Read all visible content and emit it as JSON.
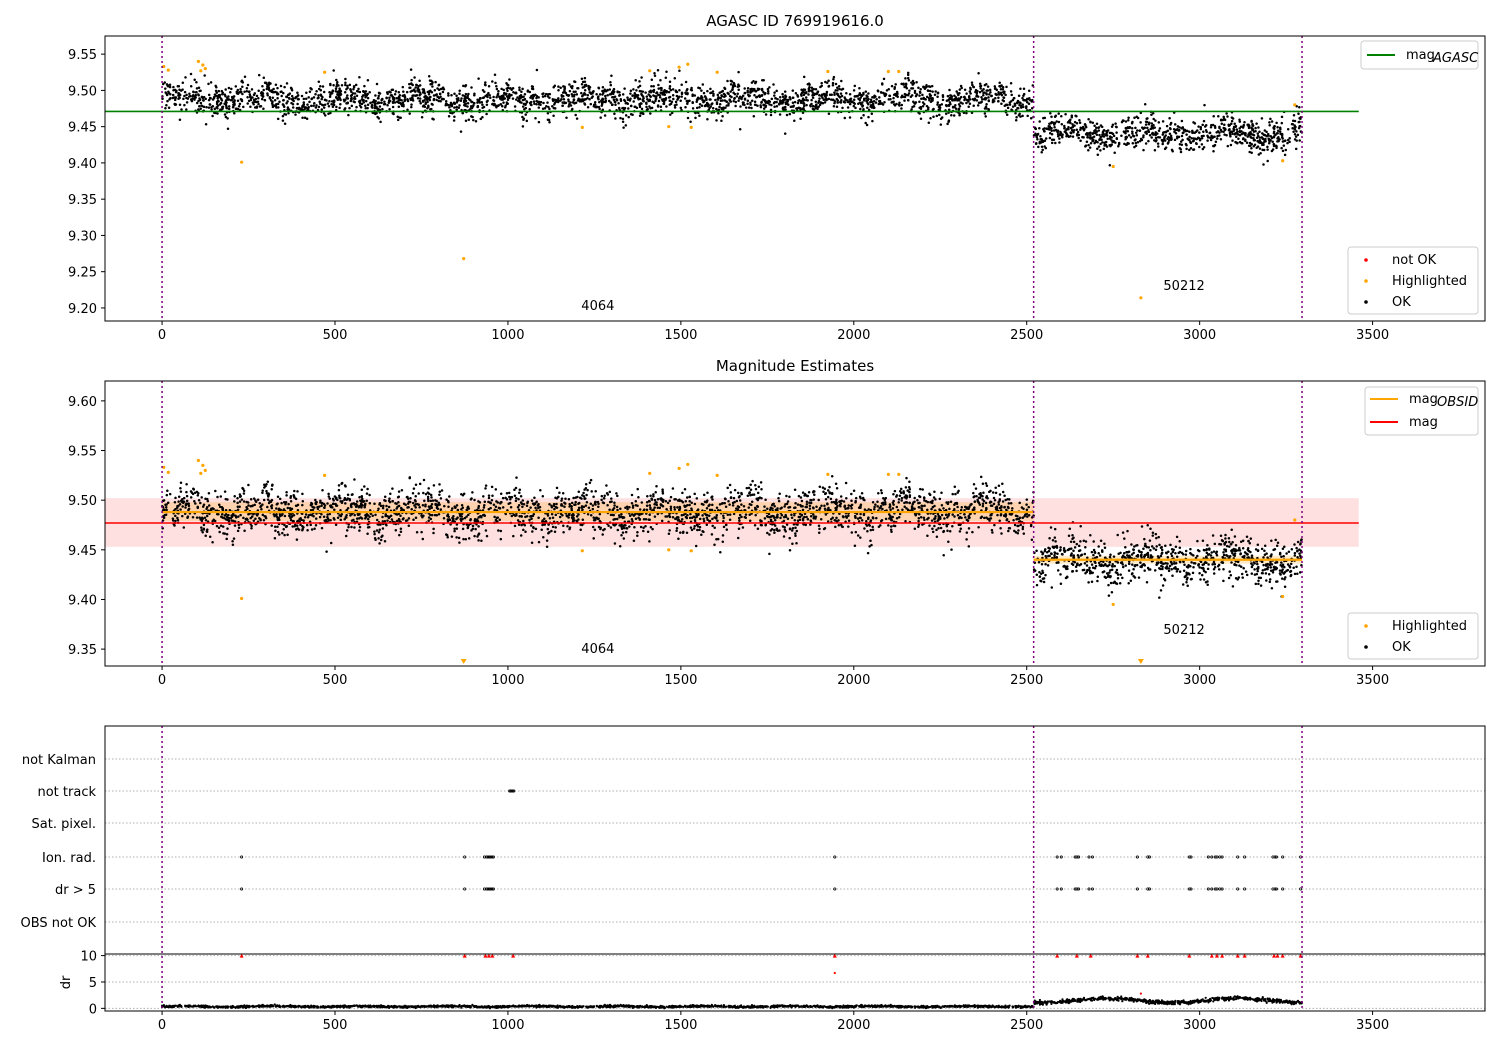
{
  "chart_data": [
    {
      "type": "scatter",
      "title": "AGASC ID 769919616.0",
      "xlim": [
        -165,
        3825
      ],
      "ylim": [
        9.182,
        9.575
      ],
      "x_ticks": [
        0,
        500,
        1000,
        1500,
        2000,
        2500,
        3000,
        3500
      ],
      "y_ticks": [
        9.2,
        9.25,
        9.3,
        9.35,
        9.4,
        9.45,
        9.5,
        9.55
      ],
      "legend_position": "top-right and bottom-right",
      "legend_top": [
        {
          "label": "mag",
          "sub": "AGASC",
          "color": "#008000"
        }
      ],
      "legend_bottom": [
        {
          "label": "not OK",
          "color": "#ff0000"
        },
        {
          "label": "Highlighted",
          "color": "#ffa500"
        },
        {
          "label": "OK",
          "color": "#000000"
        }
      ],
      "mag_agasc": {
        "value": 9.471,
        "x_range": [
          -165,
          3460
        ]
      },
      "vlines": [
        0,
        2520,
        3296
      ],
      "annotations": [
        {
          "text": "4064",
          "x": 1260,
          "y": 9.197
        },
        {
          "text": "50212",
          "x": 2955,
          "y": 9.225
        }
      ],
      "segments": [
        {
          "x_start": 0,
          "x_end": 2520,
          "mean": 9.488,
          "spread": 0.011
        },
        {
          "x_start": 2520,
          "x_end": 3296,
          "mean": 9.44,
          "spread": 0.011
        }
      ],
      "highlighted_points": [
        {
          "x": 5,
          "y": 9.533
        },
        {
          "x": 18,
          "y": 9.528
        },
        {
          "x": 105,
          "y": 9.54
        },
        {
          "x": 112,
          "y": 9.527
        },
        {
          "x": 118,
          "y": 9.535
        },
        {
          "x": 125,
          "y": 9.53
        },
        {
          "x": 230,
          "y": 9.401
        },
        {
          "x": 470,
          "y": 9.525
        },
        {
          "x": 872,
          "y": 9.268
        },
        {
          "x": 1215,
          "y": 9.449
        },
        {
          "x": 1410,
          "y": 9.527
        },
        {
          "x": 1465,
          "y": 9.45
        },
        {
          "x": 1495,
          "y": 9.532
        },
        {
          "x": 1520,
          "y": 9.536
        },
        {
          "x": 1530,
          "y": 9.449
        },
        {
          "x": 1605,
          "y": 9.525
        },
        {
          "x": 1925,
          "y": 9.526
        },
        {
          "x": 2100,
          "y": 9.526
        },
        {
          "x": 2130,
          "y": 9.526
        },
        {
          "x": 2750,
          "y": 9.395
        },
        {
          "x": 2830,
          "y": 9.214
        },
        {
          "x": 3240,
          "y": 9.403
        },
        {
          "x": 3275,
          "y": 9.48
        }
      ],
      "not_ok_points": []
    },
    {
      "type": "scatter",
      "title": "Magnitude Estimates",
      "xlim": [
        -165,
        3825
      ],
      "ylim": [
        9.333,
        9.62
      ],
      "x_ticks": [
        0,
        500,
        1000,
        1500,
        2000,
        2500,
        3000,
        3500
      ],
      "y_ticks": [
        9.35,
        9.4,
        9.45,
        9.5,
        9.55,
        9.6
      ],
      "legend_position": "top-right and bottom-right",
      "legend_top": [
        {
          "label": "mag",
          "sub": "OBSID",
          "color": "#ffa500"
        },
        {
          "label": "mag",
          "sub": "",
          "color": "#ff0000"
        }
      ],
      "legend_bottom": [
        {
          "label": "Highlighted",
          "color": "#ffa500"
        },
        {
          "label": "OK",
          "color": "#000000"
        }
      ],
      "mag_line": {
        "value": 9.477,
        "x_range": [
          -165,
          3460
        ],
        "band": [
          9.453,
          9.502
        ]
      },
      "mag_obsid": [
        {
          "x_start": 0,
          "x_end": 2520,
          "value": 9.488,
          "band": [
            9.479,
            9.498
          ]
        },
        {
          "x_start": 2520,
          "x_end": 3296,
          "value": 9.44,
          "band": [
            9.436,
            9.444
          ]
        }
      ],
      "vlines": [
        0,
        2520,
        3296
      ],
      "annotations": [
        {
          "text": "4064",
          "x": 1260,
          "y": 9.346
        },
        {
          "text": "50212",
          "x": 2955,
          "y": 9.365
        }
      ],
      "segments": [
        {
          "x_start": 0,
          "x_end": 2520,
          "mean": 9.488,
          "spread": 0.011
        },
        {
          "x_start": 2520,
          "x_end": 3296,
          "mean": 9.44,
          "spread": 0.011
        }
      ],
      "highlighted_points": [
        {
          "x": 5,
          "y": 9.533
        },
        {
          "x": 18,
          "y": 9.528
        },
        {
          "x": 105,
          "y": 9.54
        },
        {
          "x": 112,
          "y": 9.527
        },
        {
          "x": 118,
          "y": 9.535
        },
        {
          "x": 125,
          "y": 9.53
        },
        {
          "x": 230,
          "y": 9.401
        },
        {
          "x": 470,
          "y": 9.525
        },
        {
          "x": 1215,
          "y": 9.449
        },
        {
          "x": 1410,
          "y": 9.527
        },
        {
          "x": 1465,
          "y": 9.45
        },
        {
          "x": 1495,
          "y": 9.532
        },
        {
          "x": 1520,
          "y": 9.536
        },
        {
          "x": 1530,
          "y": 9.449
        },
        {
          "x": 1605,
          "y": 9.525
        },
        {
          "x": 1925,
          "y": 9.526
        },
        {
          "x": 2100,
          "y": 9.526
        },
        {
          "x": 2130,
          "y": 9.526
        },
        {
          "x": 2750,
          "y": 9.395
        },
        {
          "x": 3240,
          "y": 9.403
        },
        {
          "x": 3275,
          "y": 9.48
        }
      ],
      "offscale_markers": [
        {
          "x": 872,
          "y": 9.336
        },
        {
          "x": 2830,
          "y": 9.336
        }
      ]
    },
    {
      "type": "scatter",
      "title": "",
      "xlim": [
        -165,
        3825
      ],
      "x_ticks": [
        0,
        500,
        1000,
        1500,
        2000,
        2500,
        3000,
        3500
      ],
      "flag_rows": [
        "not Kalman",
        "not track",
        "Sat. pixel.",
        "Ion. rad.",
        "dr > 5",
        "OBS not OK"
      ],
      "vlines": [
        0,
        2520,
        3296
      ],
      "flags": {
        "not Kalman": [],
        "not track": [
          1005,
          1008,
          1011,
          1014,
          1017
        ],
        "Sat. pixel.": [],
        "Ion. rad.": [
          230,
          875,
          932,
          938,
          942,
          946,
          950,
          954,
          958,
          1945,
          2588,
          2600,
          2640,
          2645,
          2650,
          2680,
          2690,
          2820,
          2850,
          2855,
          2970,
          2975,
          3025,
          3035,
          3045,
          3050,
          3058,
          3065,
          3110,
          3130,
          3212,
          3218,
          3222,
          3240,
          3292
        ],
        "dr > 5": [
          230,
          875,
          932,
          938,
          942,
          946,
          950,
          954,
          958,
          1945,
          2588,
          2600,
          2640,
          2645,
          2650,
          2680,
          2690,
          2820,
          2850,
          2855,
          2970,
          2975,
          3025,
          3035,
          3045,
          3050,
          3058,
          3065,
          3110,
          3130,
          3212,
          3218,
          3222,
          3240,
          3292
        ],
        "OBS not OK": []
      },
      "dr_ylabel": "dr",
      "dr_ylim": [
        -0.5,
        10.3
      ],
      "dr_ticks": [
        0,
        5,
        10
      ],
      "dr_segments": [
        {
          "x_start": 0,
          "x_end": 2520,
          "mean": 0.35,
          "spread": 0.18
        },
        {
          "x_start": 2520,
          "x_end": 3296,
          "mean": 1.5,
          "spread": 0.35
        }
      ],
      "dr_clipped_points": [
        {
          "x": 230,
          "y": 10
        },
        {
          "x": 875,
          "y": 10
        },
        {
          "x": 935,
          "y": 10
        },
        {
          "x": 945,
          "y": 10
        },
        {
          "x": 955,
          "y": 10
        },
        {
          "x": 1015,
          "y": 10
        },
        {
          "x": 1945,
          "y": 10
        },
        {
          "x": 2588,
          "y": 10
        },
        {
          "x": 2645,
          "y": 10
        },
        {
          "x": 2685,
          "y": 10
        },
        {
          "x": 2820,
          "y": 10
        },
        {
          "x": 2850,
          "y": 10
        },
        {
          "x": 2970,
          "y": 10
        },
        {
          "x": 3035,
          "y": 10
        },
        {
          "x": 3050,
          "y": 10
        },
        {
          "x": 3065,
          "y": 10
        },
        {
          "x": 3110,
          "y": 10
        },
        {
          "x": 3130,
          "y": 10
        },
        {
          "x": 3215,
          "y": 10
        },
        {
          "x": 3225,
          "y": 10
        },
        {
          "x": 3240,
          "y": 10
        },
        {
          "x": 3292,
          "y": 10
        }
      ],
      "dr_red_points": [
        {
          "x": 1945,
          "y": 6.7
        },
        {
          "x": 2830,
          "y": 2.8
        }
      ]
    }
  ]
}
